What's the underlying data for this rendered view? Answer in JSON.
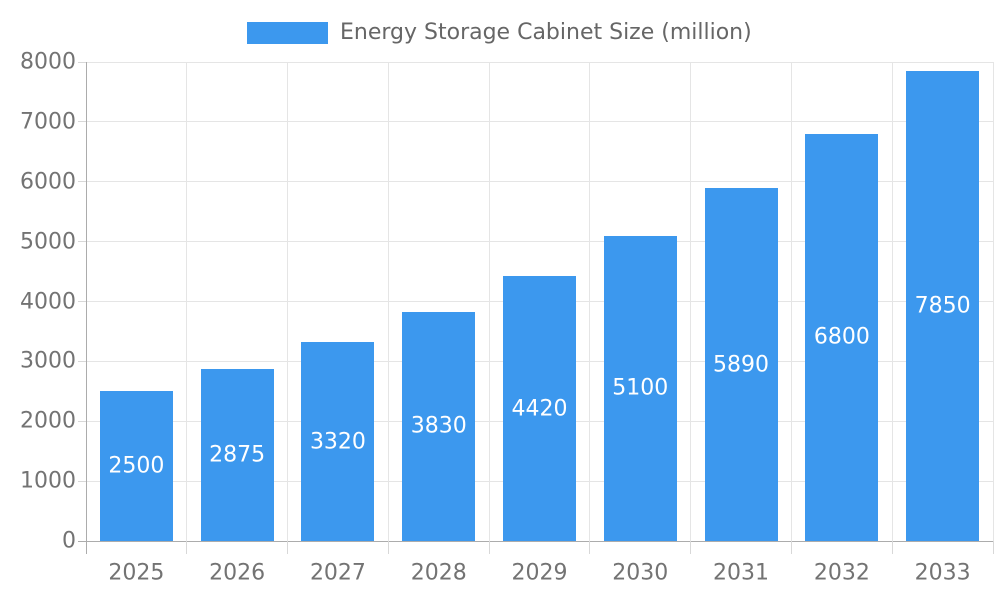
{
  "legend": {
    "label": "Energy Storage Cabinet Size (million)"
  },
  "chart_data": {
    "type": "bar",
    "title": "Energy Storage Cabinet Size (million)",
    "series_name": "Energy Storage Cabinet Size (million)",
    "categories": [
      "2025",
      "2026",
      "2027",
      "2028",
      "2029",
      "2030",
      "2031",
      "2032",
      "2033"
    ],
    "values": [
      2500,
      2875,
      3320,
      3830,
      4420,
      5100,
      5890,
      6800,
      7850
    ],
    "xlabel": "",
    "ylabel": "",
    "ylim": [
      0,
      8000
    ],
    "ytick_step": 1000,
    "ytick_labels": [
      "0",
      "1000",
      "2000",
      "3000",
      "4000",
      "5000",
      "6000",
      "7000",
      "8000"
    ],
    "grid": true,
    "legend_position": "top-center",
    "value_labels": "inside-center",
    "colors": {
      "bar": "#3C98EE",
      "grid": "#E5E5E5",
      "axis_line": "#ACACAC",
      "tick": "#D8D8D8",
      "tick_text": "#737373",
      "legend_text": "#666666",
      "value_text": "#FFFFFF",
      "background": "#FFFFFF"
    }
  }
}
